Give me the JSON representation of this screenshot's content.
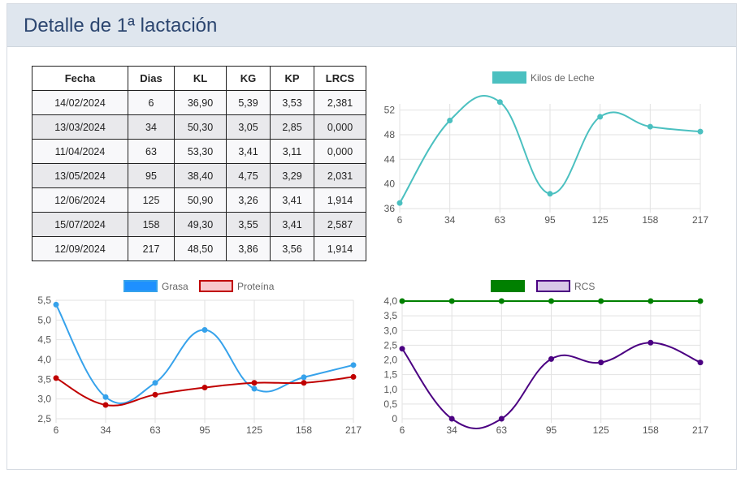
{
  "header": {
    "title": "Detalle de 1ª lactación"
  },
  "table": {
    "columns": [
      "Fecha",
      "Dias",
      "KL",
      "KG",
      "KP",
      "LRCS"
    ],
    "rows": [
      [
        "14/02/2024",
        "6",
        "36,90",
        "5,39",
        "3,53",
        "2,381"
      ],
      [
        "13/03/2024",
        "34",
        "50,30",
        "3,05",
        "2,85",
        "0,000"
      ],
      [
        "11/04/2024",
        "63",
        "53,30",
        "3,41",
        "3,11",
        "0,000"
      ],
      [
        "13/05/2024",
        "95",
        "38,40",
        "4,75",
        "3,29",
        "2,031"
      ],
      [
        "12/06/2024",
        "125",
        "50,90",
        "3,26",
        "3,41",
        "1,914"
      ],
      [
        "15/07/2024",
        "158",
        "49,30",
        "3,55",
        "3,41",
        "2,587"
      ],
      [
        "12/09/2024",
        "217",
        "48,50",
        "3,86",
        "3,56",
        "1,914"
      ]
    ]
  },
  "chart_data": [
    {
      "type": "line",
      "categories": [
        "6",
        "34",
        "63",
        "95",
        "125",
        "158",
        "217"
      ],
      "series": [
        {
          "name": "Kilos de Leche",
          "values": [
            36.9,
            50.3,
            53.3,
            38.4,
            50.9,
            49.3,
            48.5
          ],
          "color": "#4bc0c0",
          "fill": "#4bc0c0"
        }
      ],
      "ylim": [
        36,
        53
      ],
      "yticks": [
        "36",
        "40",
        "44",
        "48",
        "52"
      ],
      "ytick_values": [
        36,
        40,
        44,
        48,
        52
      ],
      "legend": "top",
      "grid": true
    },
    {
      "type": "line",
      "categories": [
        "6",
        "34",
        "63",
        "95",
        "125",
        "158",
        "217"
      ],
      "series": [
        {
          "name": "Grasa",
          "values": [
            5.39,
            3.05,
            3.41,
            4.75,
            3.26,
            3.55,
            3.86
          ],
          "color": "#36a2eb",
          "fill": "#1e90ff"
        },
        {
          "name": "Proteína",
          "values": [
            3.53,
            2.85,
            3.11,
            3.29,
            3.41,
            3.41,
            3.56
          ],
          "color": "#c00000",
          "fill": "#f8c8cc"
        }
      ],
      "ylim": [
        2.5,
        5.5
      ],
      "yticks": [
        "2,5",
        "3,0",
        "3,5",
        "4,0",
        "4,5",
        "5,0",
        "5,5"
      ],
      "ytick_values": [
        2.5,
        3.0,
        3.5,
        4.0,
        4.5,
        5.0,
        5.5
      ],
      "legend": "top",
      "grid": true
    },
    {
      "type": "line",
      "categories": [
        "6",
        "34",
        "63",
        "95",
        "125",
        "158",
        "217"
      ],
      "series": [
        {
          "name": "",
          "values": [
            4,
            4,
            4,
            4,
            4,
            4,
            4
          ],
          "color": "#008000",
          "fill": "#008000"
        },
        {
          "name": "RCS",
          "values": [
            2.381,
            0,
            0,
            2.031,
            1.914,
            2.587,
            1.914
          ],
          "color": "#4b0082",
          "fill": "#d8c8e8"
        }
      ],
      "ylim": [
        0,
        4
      ],
      "yticks": [
        "0",
        "0,5",
        "1,0",
        "1,5",
        "2,0",
        "2,5",
        "3,0",
        "3,5",
        "4,0"
      ],
      "ytick_values": [
        0,
        0.5,
        1,
        1.5,
        2,
        2.5,
        3,
        3.5,
        4
      ],
      "legend": "top",
      "grid": true
    }
  ]
}
